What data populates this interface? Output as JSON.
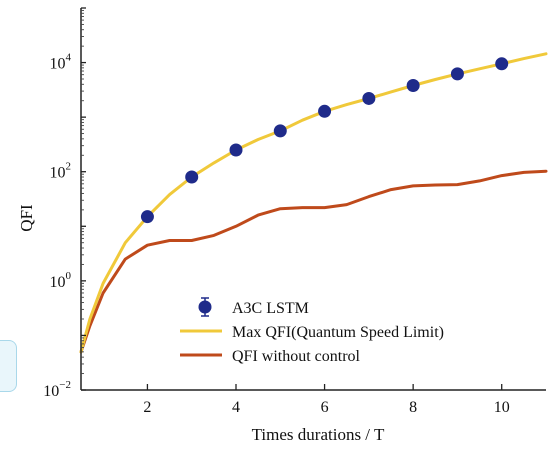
{
  "chart_data": {
    "type": "line",
    "title": "",
    "xlabel": "Times durations / T",
    "ylabel": "QFI",
    "xlim": [
      0.5,
      11
    ],
    "ylim_log10": [
      -2,
      5
    ],
    "y_scale": "log",
    "x_ticks": [
      {
        "value": 2,
        "label": "2"
      },
      {
        "value": 4,
        "label": "4"
      },
      {
        "value": 6,
        "label": "6"
      },
      {
        "value": 8,
        "label": "8"
      },
      {
        "value": 10,
        "label": "10"
      }
    ],
    "y_ticks": [
      {
        "value": 0.01,
        "base": "10",
        "exp": "−2"
      },
      {
        "value": 1,
        "base": "10",
        "exp": "0"
      },
      {
        "value": 100,
        "base": "10",
        "exp": "2"
      },
      {
        "value": 10000,
        "base": "10",
        "exp": "4"
      }
    ],
    "grid": false,
    "legend_position": "bottom-right",
    "series": [
      {
        "name": "A3C LSTM",
        "kind": "scatter",
        "color": "#1f2b8a",
        "points": [
          [
            2,
            15
          ],
          [
            3,
            80
          ],
          [
            4,
            250
          ],
          [
            5,
            560
          ],
          [
            6,
            1280
          ],
          [
            7,
            2200
          ],
          [
            8,
            3800
          ],
          [
            9,
            6200
          ],
          [
            10,
            9500
          ]
        ]
      },
      {
        "name": "Max QFI(Quantum Speed Limit)",
        "kind": "line",
        "color": "#f0c93a",
        "points": [
          [
            0.5,
            0.05
          ],
          [
            0.7,
            0.2
          ],
          [
            1.0,
            0.9
          ],
          [
            1.5,
            5
          ],
          [
            2,
            15
          ],
          [
            2.5,
            38
          ],
          [
            3,
            80
          ],
          [
            3.5,
            145
          ],
          [
            4,
            250
          ],
          [
            4.5,
            390
          ],
          [
            5,
            560
          ],
          [
            5.5,
            880
          ],
          [
            6,
            1280
          ],
          [
            6.5,
            1700
          ],
          [
            7,
            2200
          ],
          [
            7.5,
            2900
          ],
          [
            8,
            3800
          ],
          [
            8.5,
            4900
          ],
          [
            9,
            6200
          ],
          [
            9.5,
            7700
          ],
          [
            10,
            9500
          ],
          [
            10.5,
            11800
          ],
          [
            11,
            14500
          ]
        ]
      },
      {
        "name": "QFI without control",
        "kind": "line",
        "color": "#bf4a1b",
        "points": [
          [
            0.5,
            0.05
          ],
          [
            0.7,
            0.15
          ],
          [
            1.0,
            0.6
          ],
          [
            1.5,
            2.5
          ],
          [
            2,
            4.5
          ],
          [
            2.5,
            5.5
          ],
          [
            3,
            5.5
          ],
          [
            3.5,
            6.8
          ],
          [
            4,
            10
          ],
          [
            4.5,
            16
          ],
          [
            5,
            21
          ],
          [
            5.5,
            22
          ],
          [
            6,
            22
          ],
          [
            6.5,
            25
          ],
          [
            7,
            35
          ],
          [
            7.5,
            47
          ],
          [
            8,
            55
          ],
          [
            8.5,
            57
          ],
          [
            9,
            58
          ],
          [
            9.5,
            68
          ],
          [
            10,
            85
          ],
          [
            10.5,
            97
          ],
          [
            11,
            102
          ]
        ]
      }
    ]
  }
}
